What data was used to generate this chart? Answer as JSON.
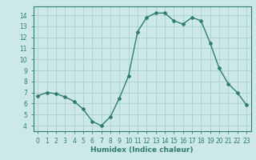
{
  "x": [
    0,
    1,
    2,
    3,
    4,
    5,
    6,
    7,
    8,
    9,
    10,
    11,
    12,
    13,
    14,
    15,
    16,
    17,
    18,
    19,
    20,
    21,
    22,
    23
  ],
  "y": [
    6.7,
    7.0,
    6.9,
    6.6,
    6.2,
    5.5,
    4.4,
    4.0,
    4.8,
    6.5,
    8.5,
    12.5,
    13.8,
    14.2,
    14.2,
    13.5,
    13.2,
    13.8,
    13.5,
    11.5,
    9.2,
    7.8,
    7.0,
    5.9
  ],
  "line_color": "#2e7d6e",
  "marker": "D",
  "marker_size": 2.0,
  "bg_color": "#cce8ea",
  "grid_color": "#aacfd1",
  "xlabel": "Humidex (Indice chaleur)",
  "xlim": [
    -0.5,
    23.5
  ],
  "ylim": [
    3.5,
    14.8
  ],
  "yticks": [
    4,
    5,
    6,
    7,
    8,
    9,
    10,
    11,
    12,
    13,
    14
  ],
  "xticks": [
    0,
    1,
    2,
    3,
    4,
    5,
    6,
    7,
    8,
    9,
    10,
    11,
    12,
    13,
    14,
    15,
    16,
    17,
    18,
    19,
    20,
    21,
    22,
    23
  ],
  "tick_fontsize": 5.5,
  "label_fontsize": 6.5,
  "line_width": 1.0
}
